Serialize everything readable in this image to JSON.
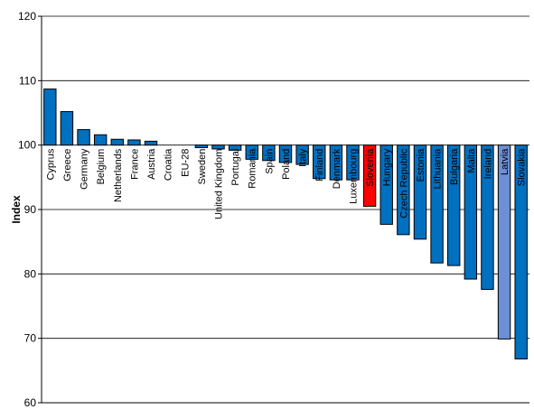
{
  "chart_data": {
    "type": "bar",
    "title": "",
    "xlabel": "",
    "ylabel": "Index",
    "ylim": [
      60,
      120
    ],
    "yticks": [
      60,
      70,
      80,
      90,
      100,
      110,
      120
    ],
    "baseline": 100,
    "grid": true,
    "legend": "none",
    "categories": [
      "Cyprus",
      "Greece",
      "Germany",
      "Belgium",
      "Netherlands",
      "France",
      "Austria",
      "Croatia",
      "EU-28",
      "Sweden",
      "United Kingdom",
      "Portugal",
      "Romania",
      "Spain",
      "Poland",
      "Italy",
      "Finland",
      "Denmark",
      "Luxembourg",
      "Slovenia",
      "Hungary",
      "Czech Republic",
      "Estonia",
      "Lithuania",
      "Bulgaria",
      "Malta",
      "Ireland",
      "Latvia",
      "Slovakia"
    ],
    "values": [
      108.7,
      105.2,
      102.4,
      101.6,
      100.9,
      100.8,
      100.6,
      100.0,
      100.0,
      99.6,
      99.4,
      99.2,
      97.8,
      97.6,
      97.3,
      97.0,
      94.8,
      94.6,
      94.6,
      90.5,
      87.7,
      86.1,
      85.4,
      81.7,
      81.3,
      79.2,
      77.6,
      69.9,
      66.8
    ],
    "bar_colors": [
      "#0070C0",
      "#0070C0",
      "#0070C0",
      "#0070C0",
      "#0070C0",
      "#0070C0",
      "#0070C0",
      "#0070C0",
      "#0070C0",
      "#0070C0",
      "#0070C0",
      "#0070C0",
      "#0070C0",
      "#0070C0",
      "#0070C0",
      "#0070C0",
      "#0070C0",
      "#0070C0",
      "#0070C0",
      "#FF0000",
      "#0070C0",
      "#0070C0",
      "#0070C0",
      "#0070C0",
      "#0070C0",
      "#0070C0",
      "#0070C0",
      "#6C8FD6",
      "#0070C0"
    ]
  }
}
